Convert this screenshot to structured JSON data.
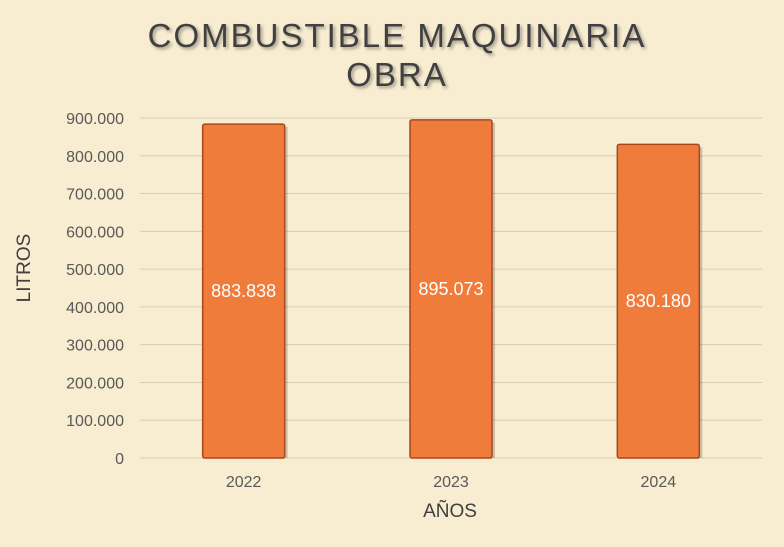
{
  "chart_data": {
    "type": "bar",
    "title_lines": [
      "COMBUSTIBLE MAQUINARIA",
      "OBRA"
    ],
    "xlabel": "AÑOS",
    "ylabel": "LITROS",
    "categories": [
      "2022",
      "2023",
      "2024"
    ],
    "values": [
      883838,
      895073,
      830180
    ],
    "data_labels": [
      "883.838",
      "895.073",
      "830.180"
    ],
    "ylim": [
      0,
      900000
    ],
    "yticks": [
      0,
      100000,
      200000,
      300000,
      400000,
      500000,
      600000,
      700000,
      800000,
      900000
    ],
    "ytick_labels": [
      "0",
      "100.000",
      "200.000",
      "300.000",
      "400.000",
      "500.000",
      "600.000",
      "700.000",
      "800.000",
      "900.000"
    ],
    "grid": true,
    "legend": "none"
  },
  "colors": {
    "background": "#f8ecd1",
    "bar_fill": "#f07c3c",
    "bar_edge": "#a8481a",
    "gridline": "#d9cdb3"
  }
}
